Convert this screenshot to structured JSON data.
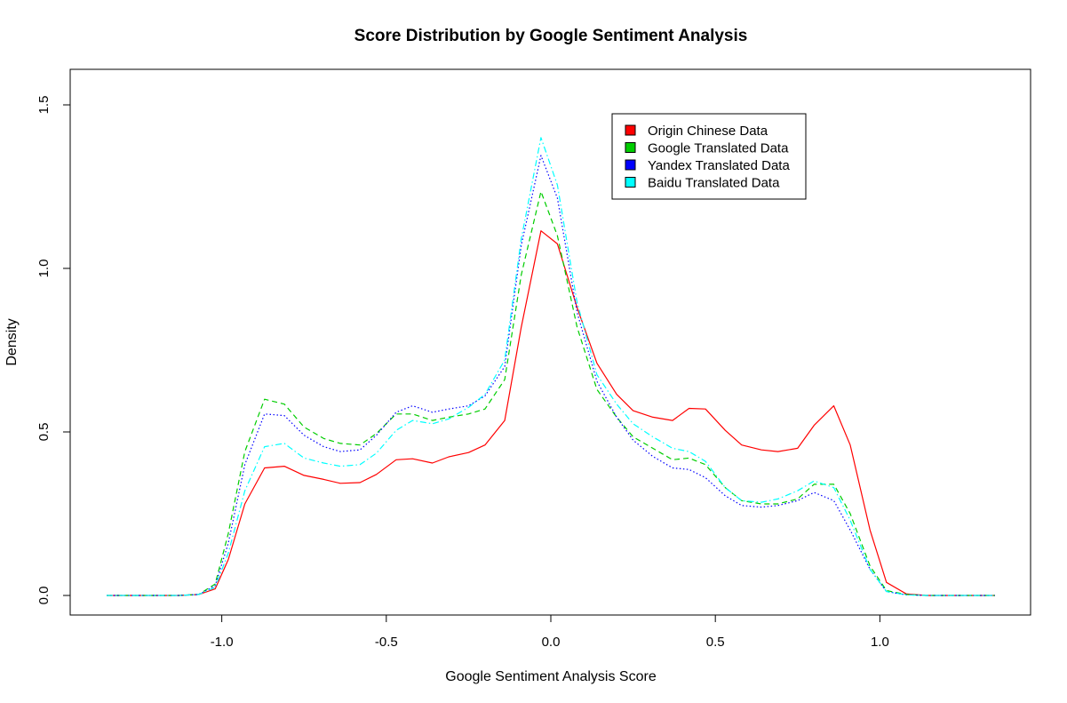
{
  "chart_data": {
    "type": "line",
    "title": "Score Distribution by Google Sentiment Analysis",
    "xlabel": "Google Sentiment Analysis Score",
    "ylabel": "Density",
    "xlim": [
      -1.35,
      1.35
    ],
    "ylim": [
      0,
      1.55
    ],
    "x_ticks": [
      -1.0,
      -0.5,
      0.0,
      0.5,
      1.0
    ],
    "x_tick_labels": [
      "-1.0",
      "-0.5",
      "0.0",
      "0.5",
      "1.0"
    ],
    "y_ticks": [
      0.0,
      0.5,
      1.0,
      1.5
    ],
    "y_tick_labels": [
      "0.0",
      "0.5",
      "1.0",
      "1.5"
    ],
    "grid": false,
    "legend_position": "top-right",
    "x": [
      -1.35,
      -1.29,
      -1.24,
      -1.18,
      -1.13,
      -1.07,
      -1.02,
      -0.98,
      -0.93,
      -0.87,
      -0.81,
      -0.75,
      -0.69,
      -0.64,
      -0.58,
      -0.53,
      -0.47,
      -0.42,
      -0.36,
      -0.31,
      -0.25,
      -0.2,
      -0.14,
      -0.09,
      -0.03,
      0.02,
      0.08,
      0.14,
      0.2,
      0.25,
      0.31,
      0.37,
      0.42,
      0.47,
      0.53,
      0.58,
      0.64,
      0.69,
      0.75,
      0.8,
      0.86,
      0.91,
      0.97,
      1.02,
      1.08,
      1.14,
      1.2,
      1.27,
      1.35
    ],
    "series": [
      {
        "name": "Origin Chinese Data",
        "color": "#ff0000",
        "dash": "solid",
        "values": [
          0,
          0,
          0,
          0,
          0,
          0.003,
          0.02,
          0.11,
          0.28,
          0.39,
          0.395,
          0.367,
          0.355,
          0.343,
          0.345,
          0.37,
          0.415,
          0.418,
          0.405,
          0.424,
          0.437,
          0.46,
          0.535,
          0.82,
          1.115,
          1.075,
          0.88,
          0.71,
          0.615,
          0.565,
          0.545,
          0.535,
          0.572,
          0.57,
          0.505,
          0.46,
          0.445,
          0.44,
          0.45,
          0.52,
          0.58,
          0.46,
          0.2,
          0.04,
          0.005,
          0,
          0,
          0,
          0
        ]
      },
      {
        "name": "Google Translated Data",
        "color": "#00cd00",
        "dash": "dashed",
        "values": [
          0,
          0,
          0,
          0,
          0,
          0.003,
          0.035,
          0.19,
          0.44,
          0.6,
          0.585,
          0.515,
          0.48,
          0.465,
          0.46,
          0.495,
          0.555,
          0.555,
          0.535,
          0.545,
          0.555,
          0.57,
          0.66,
          0.98,
          1.235,
          1.1,
          0.82,
          0.63,
          0.545,
          0.485,
          0.45,
          0.415,
          0.42,
          0.4,
          0.33,
          0.29,
          0.28,
          0.28,
          0.295,
          0.34,
          0.34,
          0.25,
          0.09,
          0.015,
          0.003,
          0,
          0,
          0,
          0
        ]
      },
      {
        "name": "Yandex Translated Data",
        "color": "#0000ff",
        "dash": "dotted",
        "values": [
          0,
          0,
          0,
          0,
          0,
          0.003,
          0.03,
          0.16,
          0.4,
          0.555,
          0.55,
          0.49,
          0.455,
          0.44,
          0.445,
          0.49,
          0.56,
          0.58,
          0.56,
          0.57,
          0.58,
          0.61,
          0.7,
          1.07,
          1.345,
          1.215,
          0.865,
          0.655,
          0.545,
          0.475,
          0.425,
          0.39,
          0.385,
          0.36,
          0.305,
          0.275,
          0.27,
          0.275,
          0.29,
          0.315,
          0.29,
          0.2,
          0.08,
          0.012,
          0.002,
          0,
          0,
          0,
          0
        ]
      },
      {
        "name": "Baidu Translated Data",
        "color": "#00ffff",
        "dash": "dashdot",
        "values": [
          0,
          0,
          0,
          0,
          0,
          0.003,
          0.025,
          0.13,
          0.32,
          0.455,
          0.465,
          0.42,
          0.405,
          0.395,
          0.4,
          0.435,
          0.505,
          0.535,
          0.525,
          0.54,
          0.575,
          0.615,
          0.72,
          1.09,
          1.4,
          1.255,
          0.895,
          0.675,
          0.585,
          0.525,
          0.485,
          0.45,
          0.44,
          0.41,
          0.33,
          0.29,
          0.285,
          0.295,
          0.32,
          0.35,
          0.33,
          0.23,
          0.08,
          0.012,
          0.002,
          0,
          0,
          0,
          0
        ]
      }
    ]
  }
}
